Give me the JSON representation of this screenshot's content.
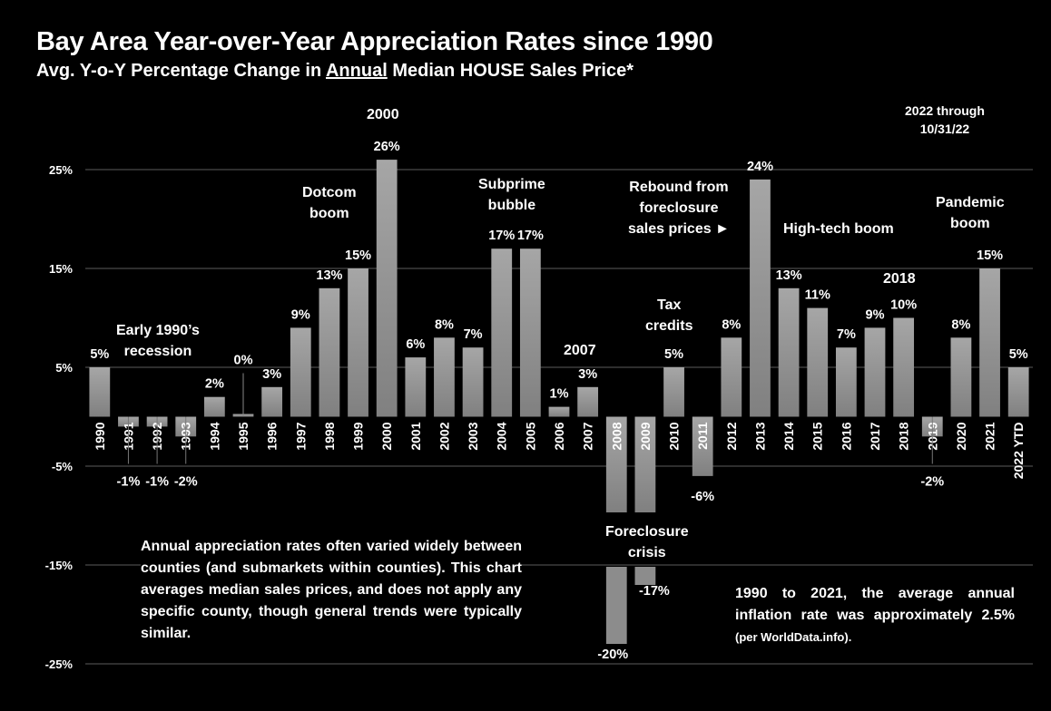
{
  "header": {
    "title": "Bay Area Year-over-Year Appreciation Rates since 1990",
    "subtitle_pre": "Avg. Y-o-Y Percentage Change in ",
    "subtitle_underlined": "Annual",
    "subtitle_post": " Median HOUSE Sales Price*"
  },
  "chart_data": {
    "type": "bar",
    "title": "Bay Area Year-over-Year Appreciation Rates since 1990",
    "subtitle": "Avg. Y-o-Y Percentage Change in Annual Median HOUSE Sales Price*",
    "xlabel": "",
    "ylabel": "",
    "ylim": [
      -25,
      28
    ],
    "yticks": [
      25,
      15,
      5,
      -5,
      -15,
      -25
    ],
    "ytick_labels": [
      "25%",
      "15%",
      "5%",
      "-5%",
      "-15%",
      "-25%"
    ],
    "grid": true,
    "axis_break": "y axis broken between roughly -10% and -15% (bars for 2008/2009 split)",
    "categories": [
      "1990",
      "1991",
      "1992",
      "1993",
      "1994",
      "1995",
      "1996",
      "1997",
      "1998",
      "1999",
      "2000",
      "2001",
      "2002",
      "2003",
      "2004",
      "2005",
      "2006",
      "2007",
      "2008",
      "2009",
      "2010",
      "2011",
      "2012",
      "2013",
      "2014",
      "2015",
      "2016",
      "2017",
      "2018",
      "2019",
      "2020",
      "2021",
      "2022 YTD"
    ],
    "values": [
      5,
      -1,
      -1,
      -2,
      2,
      0,
      3,
      9,
      13,
      15,
      26,
      6,
      8,
      7,
      17,
      17,
      1,
      3,
      -20,
      -17,
      5,
      -6,
      8,
      24,
      13,
      11,
      7,
      9,
      10,
      -2,
      8,
      15,
      5
    ],
    "data_labels": [
      "5%",
      "-1%",
      "-1%",
      "-2%",
      "2%",
      "0%",
      "3%",
      "9%",
      "13%",
      "15%",
      "26%",
      "6%",
      "8%",
      "7%",
      "17%",
      "17%",
      "1%",
      "3%",
      "-20%",
      "-17%",
      "5%",
      "-6%",
      "8%",
      "24%",
      "13%",
      "11%",
      "7%",
      "9%",
      "10%",
      "-2%",
      "8%",
      "15%",
      "5%"
    ],
    "annotations": [
      {
        "text": "Early 1990’s recession",
        "near": "1991-1993"
      },
      {
        "text": "Dotcom boom",
        "near": "1999"
      },
      {
        "text": "2000",
        "near": "2000"
      },
      {
        "text": "Subprime bubble",
        "near": "2004-2005"
      },
      {
        "text": "2007",
        "near": "2007"
      },
      {
        "text": "Foreclosure crisis",
        "near": "2008-2009"
      },
      {
        "text": "Tax credits",
        "near": "2010"
      },
      {
        "text": "Rebound from foreclosure sales prices ►",
        "near": "2012"
      },
      {
        "text": "High-tech boom",
        "near": "2014-2017"
      },
      {
        "text": "2018",
        "near": "2018"
      },
      {
        "text": "Pandemic boom",
        "near": "2020-2021"
      },
      {
        "text": "2022 through 10/31/22",
        "near": "2022 YTD"
      }
    ]
  },
  "annotations": {
    "early_1990s_line1": "Early 1990’s",
    "early_1990s_line2": "recession",
    "dotcom_line1": "Dotcom",
    "dotcom_line2": "boom",
    "year_2000": "2000",
    "subprime_line1": "Subprime",
    "subprime_line2": "bubble",
    "year_2007": "2007",
    "foreclosure_line1": "Foreclosure",
    "foreclosure_line2": "crisis",
    "tax_line1": "Tax",
    "tax_line2": "credits",
    "rebound_line1": "Rebound from",
    "rebound_line2": "foreclosure",
    "rebound_line3": "sales prices  ►",
    "hightech": "High-tech boom",
    "year_2018": "2018",
    "pandemic_line1": "Pandemic",
    "pandemic_line2": "boom",
    "ytd_line1": "2022 through",
    "ytd_line2": "10/31/22"
  },
  "notes": {
    "counties": "Annual appreciation rates often varied widely between counties (and submarkets within counties). This chart averages  median sales prices, and does not apply any specific county, though general trends were typically similar.",
    "inflation_main": "1990 to 2021, the average annual inflation rate was approximately 2.5% ",
    "inflation_source": "(per WorldData.info)."
  }
}
